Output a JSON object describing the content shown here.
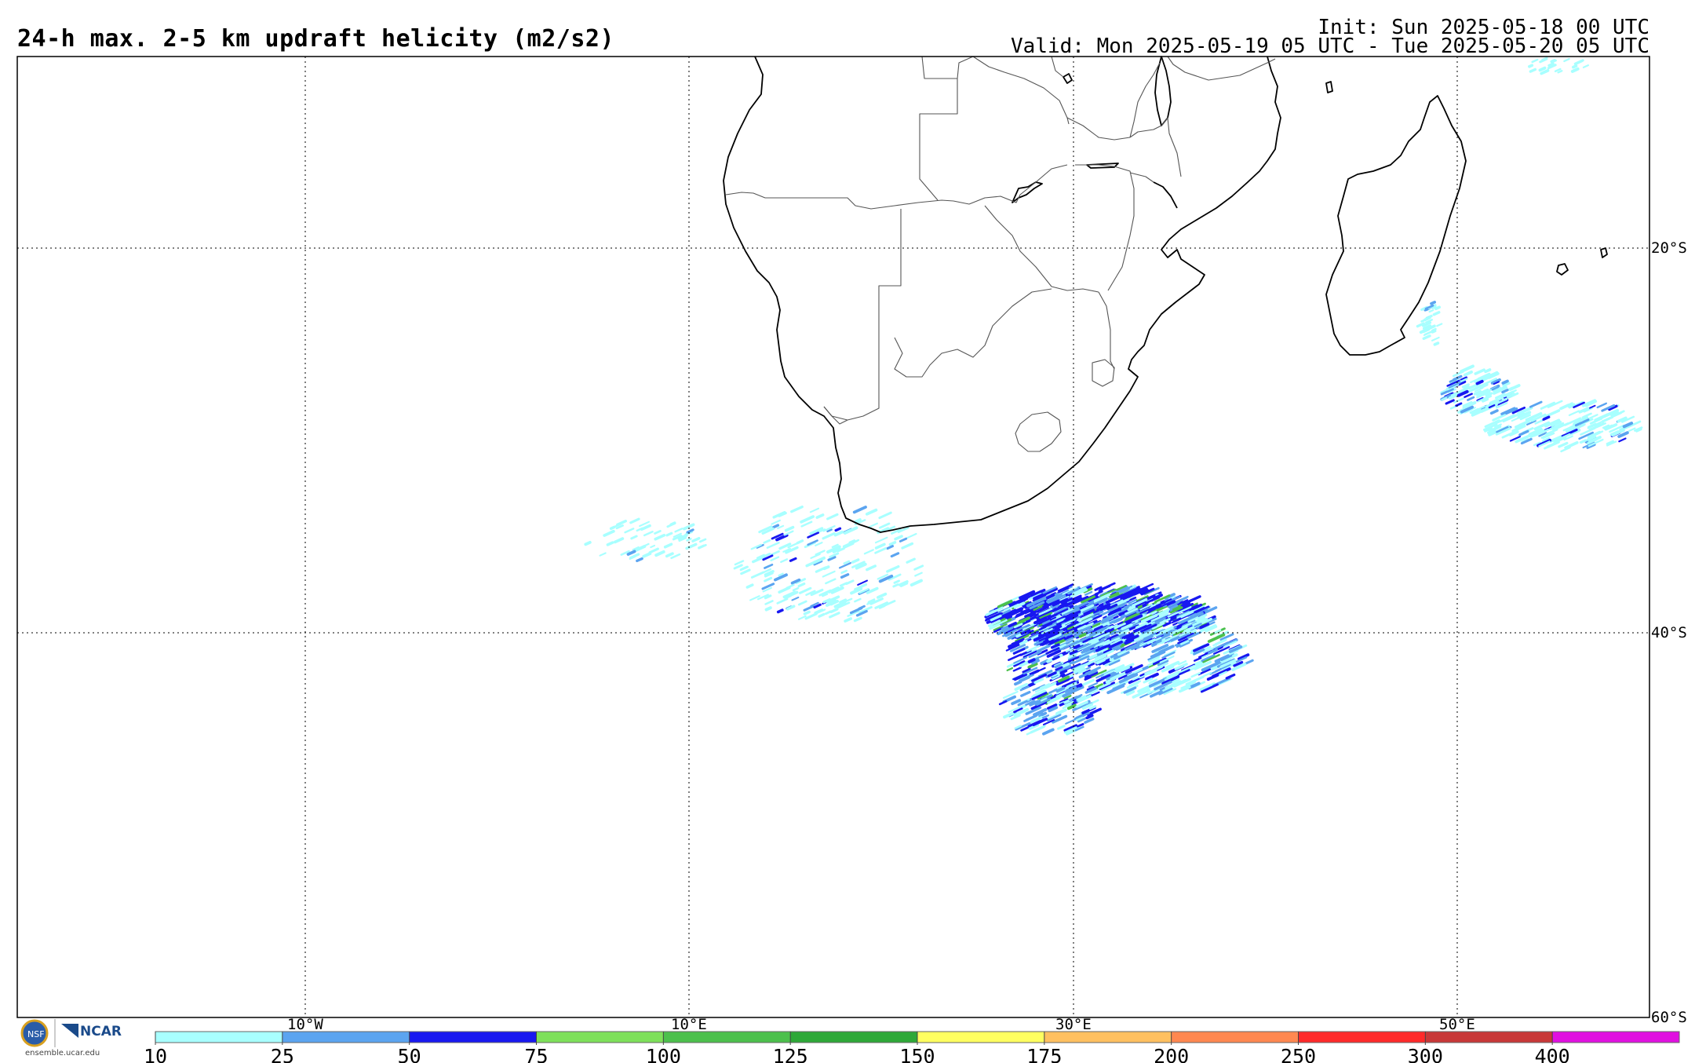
{
  "header": {
    "title": "24-h max. 2-5 km updraft helicity (m2/s2)",
    "init": "Init: Sun 2025-05-18 00 UTC",
    "valid": "Valid: Mon 2025-05-19 05 UTC - Tue 2025-05-20 05 UTC"
  },
  "map": {
    "region": "Southern Africa and South Atlantic / Indian Ocean",
    "lat_labels": [
      "20°S",
      "40°S",
      "60°S"
    ],
    "lon_labels": [
      "10°W",
      "10°E",
      "30°E",
      "50°E"
    ],
    "gridlines": true
  },
  "colorbar": {
    "ticks": [
      "10",
      "25",
      "50",
      "75",
      "100",
      "125",
      "150",
      "175",
      "200",
      "250",
      "300",
      "400"
    ],
    "colors": [
      "#a8ffff",
      "#5ba4f0",
      "#1818f0",
      "#7ee05a",
      "#4cc04c",
      "#2ea838",
      "#ffff60",
      "#ffc060",
      "#ff8850",
      "#ff2a2a",
      "#c83838",
      "#e010e0"
    ]
  },
  "logos": {
    "nsf": "NSF",
    "ncar": "NCAR",
    "site": "ensemble.ucar.edu"
  },
  "palette": {
    "field_light": "#a8ffff",
    "field_mid": "#5ba4f0",
    "field_dark": "#1818f0",
    "field_green": "#4cc04c"
  }
}
